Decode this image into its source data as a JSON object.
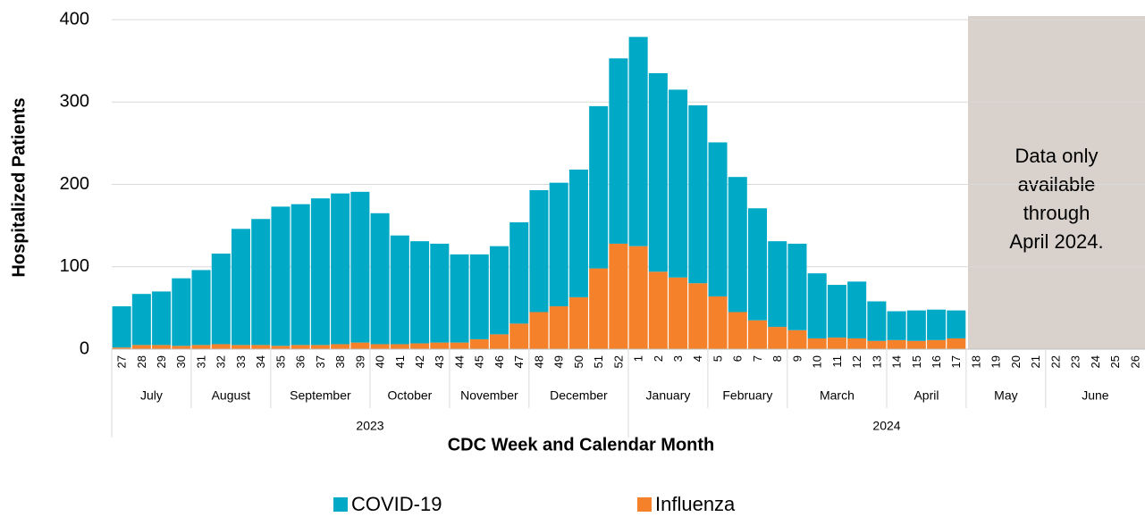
{
  "chart_data": {
    "type": "stacked_bar",
    "ylabel": "Hospitalized Patients",
    "xlabel": "CDC Week and Calendar Month",
    "categories": [
      "27",
      "28",
      "29",
      "30",
      "31",
      "32",
      "33",
      "34",
      "35",
      "36",
      "37",
      "38",
      "39",
      "40",
      "41",
      "42",
      "43",
      "44",
      "45",
      "46",
      "47",
      "48",
      "49",
      "50",
      "51",
      "52",
      "1",
      "2",
      "3",
      "4",
      "5",
      "6",
      "7",
      "8",
      "9",
      "10",
      "11",
      "12",
      "13",
      "14",
      "15",
      "16",
      "17",
      "18",
      "19",
      "20",
      "21",
      "22",
      "23",
      "24",
      "25",
      "26"
    ],
    "category_months": [
      "July",
      "July",
      "July",
      "July",
      "August",
      "August",
      "August",
      "August",
      "September",
      "September",
      "September",
      "September",
      "September",
      "October",
      "October",
      "October",
      "October",
      "November",
      "November",
      "November",
      "November",
      "December",
      "December",
      "December",
      "December",
      "December",
      "January",
      "January",
      "January",
      "January",
      "February",
      "February",
      "February",
      "February",
      "March",
      "March",
      "March",
      "March",
      "March",
      "April",
      "April",
      "April",
      "April",
      "May",
      "May",
      "May",
      "May",
      "June",
      "June",
      "June",
      "June",
      "June"
    ],
    "category_years": [
      "2023",
      "2023",
      "2023",
      "2023",
      "2023",
      "2023",
      "2023",
      "2023",
      "2023",
      "2023",
      "2023",
      "2023",
      "2023",
      "2023",
      "2023",
      "2023",
      "2023",
      "2023",
      "2023",
      "2023",
      "2023",
      "2023",
      "2023",
      "2023",
      "2023",
      "2023",
      "2024",
      "2024",
      "2024",
      "2024",
      "2024",
      "2024",
      "2024",
      "2024",
      "2024",
      "2024",
      "2024",
      "2024",
      "2024",
      "2024",
      "2024",
      "2024",
      "2024",
      "2024",
      "2024",
      "2024",
      "2024",
      "2024",
      "2024",
      "2024",
      "2024",
      "2024"
    ],
    "series": [
      {
        "name": "COVID-19",
        "color": "#00a9c6",
        "values": [
          50,
          62,
          65,
          82,
          91,
          110,
          141,
          153,
          169,
          171,
          178,
          183,
          183,
          159,
          132,
          124,
          120,
          107,
          103,
          107,
          123,
          148,
          150,
          155,
          197,
          225,
          254,
          241,
          228,
          216,
          187,
          164,
          136,
          104,
          105,
          79,
          64,
          69,
          48,
          35,
          37,
          37,
          34,
          null,
          null,
          null,
          null,
          null,
          null,
          null,
          null,
          null
        ]
      },
      {
        "name": "Influenza",
        "color": "#f5822a",
        "values": [
          2,
          5,
          5,
          4,
          5,
          6,
          5,
          5,
          4,
          5,
          5,
          6,
          8,
          6,
          6,
          7,
          8,
          8,
          12,
          18,
          31,
          45,
          52,
          63,
          98,
          128,
          125,
          94,
          87,
          80,
          64,
          45,
          35,
          27,
          23,
          13,
          14,
          13,
          10,
          11,
          10,
          11,
          13,
          null,
          null,
          null,
          null,
          null,
          null,
          null,
          null,
          null
        ]
      }
    ],
    "ylim": [
      0,
      400
    ],
    "yticks": [
      0,
      100,
      200,
      300,
      400
    ],
    "grid": true,
    "annotation": [
      "Data only",
      "available",
      "through",
      "April 2024."
    ]
  }
}
